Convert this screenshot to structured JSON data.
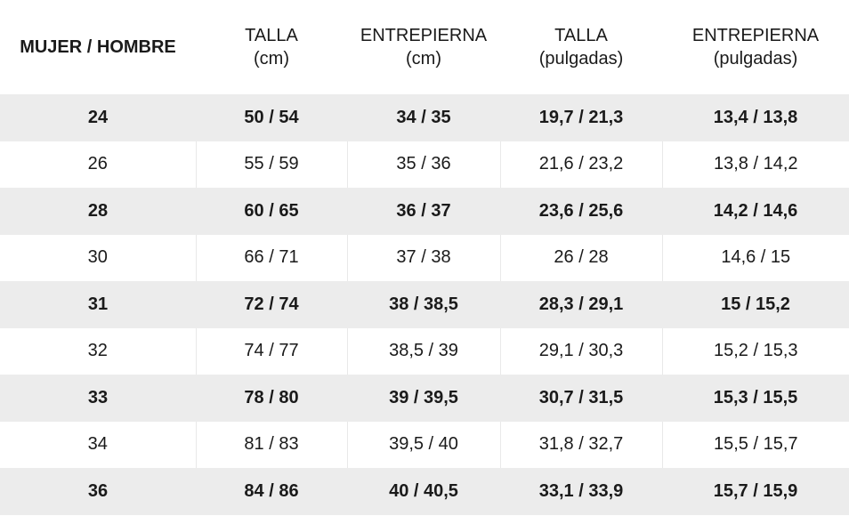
{
  "table": {
    "headers": [
      {
        "line1": "MUJER / HOMBRE",
        "line2": ""
      },
      {
        "line1": "TALLA",
        "line2": "(cm)"
      },
      {
        "line1": "ENTREPIERNA",
        "line2": "(cm)"
      },
      {
        "line1": "TALLA",
        "line2": "(pulgadas)"
      },
      {
        "line1": "ENTREPIERNA",
        "line2": "(pulgadas)"
      }
    ],
    "rows": [
      [
        "24",
        "50 / 54",
        "34 / 35",
        "19,7 / 21,3",
        "13,4 / 13,8"
      ],
      [
        "26",
        "55 / 59",
        "35 / 36",
        "21,6 / 23,2",
        "13,8 / 14,2"
      ],
      [
        "28",
        "60 / 65",
        "36 / 37",
        "23,6 / 25,6",
        "14,2 / 14,6"
      ],
      [
        "30",
        "66 / 71",
        "37 / 38",
        "26 / 28",
        "14,6 / 15"
      ],
      [
        "31",
        "72 / 74",
        "38 / 38,5",
        "28,3 / 29,1",
        "15 / 15,2"
      ],
      [
        "32",
        "74 / 77",
        "38,5 / 39",
        "29,1 / 30,3",
        "15,2 / 15,3"
      ],
      [
        "33",
        "78 / 80",
        "39 / 39,5",
        "30,7 / 31,5",
        "15,3 / 15,5"
      ],
      [
        "34",
        "81 / 83",
        "39,5 / 40",
        "31,8 / 32,7",
        "15,5 / 15,7"
      ],
      [
        "36",
        "84 / 86",
        "40 / 40,5",
        "33,1 / 33,9",
        "15,7 / 15,9"
      ]
    ],
    "colors": {
      "shaded_row": "#ececec",
      "plain_row": "#ffffff",
      "text": "#1a1a1a",
      "divider": "#e9e9e9"
    }
  }
}
